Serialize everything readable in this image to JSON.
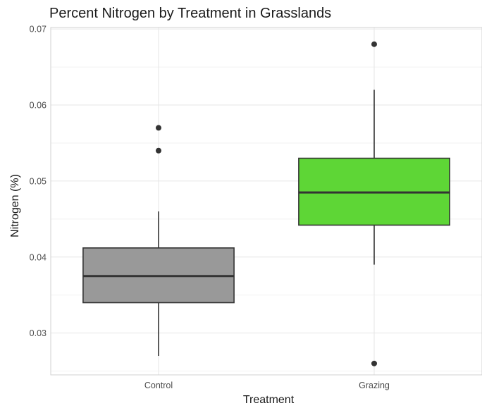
{
  "chart_data": {
    "type": "boxplot",
    "title": "Percent Nitrogen by Treatment in Grasslands",
    "xlabel": "Treatment",
    "ylabel": "Nitrogen (%)",
    "categories": [
      "Control",
      "Grazing"
    ],
    "ylim": [
      0.0245,
      0.0702
    ],
    "yticks": [
      {
        "value": 0.03,
        "label": "0.03"
      },
      {
        "value": 0.04,
        "label": "0.04"
      },
      {
        "value": 0.05,
        "label": "0.05"
      },
      {
        "value": 0.06,
        "label": "0.06"
      },
      {
        "value": 0.07,
        "label": "0.07"
      }
    ],
    "grid": true,
    "boxes": [
      {
        "category": "Control",
        "fill": "#999999",
        "whisker_low": 0.027,
        "q1": 0.034,
        "median": 0.0375,
        "q3": 0.0412,
        "whisker_high": 0.046,
        "outliers": [
          0.054,
          0.057
        ]
      },
      {
        "category": "Grazing",
        "fill": "#5ed636",
        "whisker_low": 0.039,
        "q1": 0.0442,
        "median": 0.0485,
        "q3": 0.053,
        "whisker_high": 0.062,
        "outliers": [
          0.026,
          0.068
        ]
      }
    ]
  }
}
